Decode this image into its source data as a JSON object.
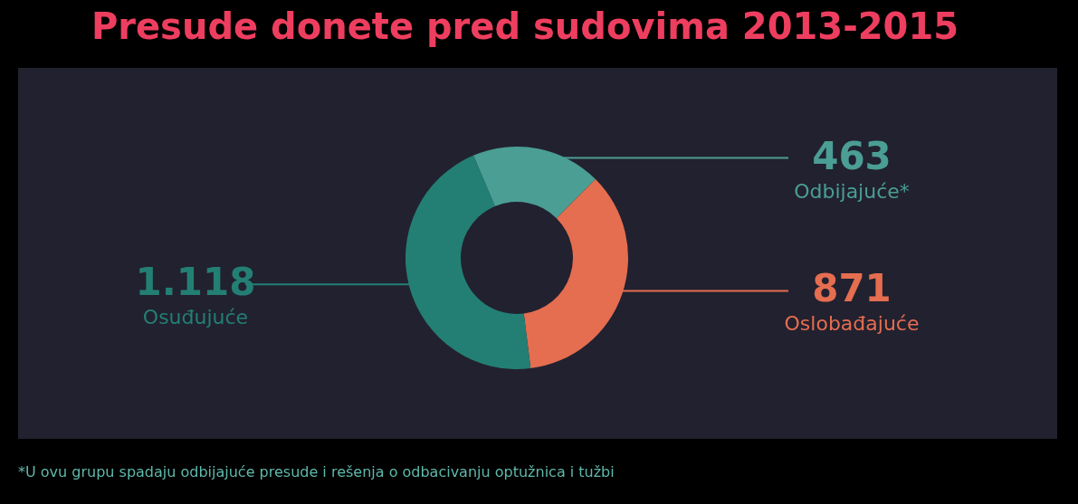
{
  "chart_data": {
    "type": "donut",
    "title": "Presude donete pred sudovima 2013-2015",
    "categories": [
      "Odbijajuće*",
      "Oslobađajuće",
      "Osuđujuće"
    ],
    "values": [
      463,
      871,
      1118
    ],
    "value_labels": [
      "463",
      "871",
      "1.118"
    ],
    "colors": [
      "#4a9e94",
      "#e56d50",
      "#237f74"
    ],
    "annotations": [
      "*U ovu grupu spadaju odbijajuće presude i rešenja o odbacivanju optužnica i tužbi"
    ]
  }
}
